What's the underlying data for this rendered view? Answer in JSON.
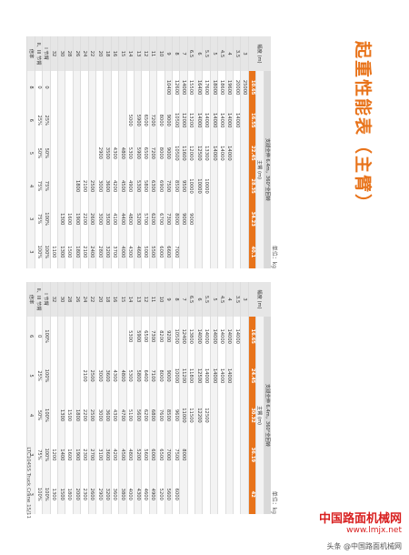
{
  "header": {
    "title": "起重性能表（主臂）"
  },
  "tables": [
    {
      "unit": "单位：kg",
      "radius_label": "幅度 (m)",
      "condition": "支腿全伸 6.4m，360°全回转",
      "boom_label": "主臂 (m)",
      "boom_lengths": [
        10.65,
        16.55,
        22.45,
        28.35,
        34.23,
        40.1
      ],
      "rows": [
        {
          "radius": 3,
          "values": [
            25000,
            null,
            null,
            null,
            null,
            null
          ]
        },
        {
          "radius": 3.5,
          "values": [
            20000,
            14000,
            null,
            null,
            null,
            null
          ]
        },
        {
          "radius": 4,
          "values": [
            19600,
            14000,
            14000,
            null,
            null,
            null
          ]
        },
        {
          "radius": 4.5,
          "values": [
            18600,
            14000,
            14000,
            null,
            null,
            null
          ]
        },
        {
          "radius": 5,
          "values": [
            18000,
            14000,
            14000,
            null,
            null,
            null
          ]
        },
        {
          "radius": 5.5,
          "values": [
            17600,
            14000,
            13300,
            10000,
            null,
            null
          ]
        },
        {
          "radius": 6,
          "values": [
            16400,
            14000,
            12500,
            10000,
            null,
            null
          ]
        },
        {
          "radius": 6.5,
          "values": [
            15500,
            13200,
            12000,
            10000,
            9000,
            null
          ]
        },
        {
          "radius": 7,
          "values": [
            14000,
            12000,
            11600,
            9500,
            9000,
            null
          ]
        },
        {
          "radius": 8,
          "values": [
            12600,
            10500,
            10500,
            8500,
            8000,
            7000
          ]
        },
        {
          "radius": 9,
          "values": [
            10400,
            9000,
            9000,
            7500,
            7300,
            6600
          ]
        },
        {
          "radius": 10,
          "values": [
            null,
            8000,
            8000,
            6900,
            6700,
            6000
          ]
        },
        {
          "radius": 11,
          "values": [
            null,
            7200,
            7200,
            6300,
            6200,
            5500
          ]
        },
        {
          "radius": 12,
          "values": [
            null,
            6500,
            6500,
            5800,
            5700,
            5000
          ]
        },
        {
          "radius": 13,
          "values": [
            null,
            5900,
            5900,
            5300,
            5200,
            4600
          ]
        },
        {
          "radius": 14,
          "values": [
            null,
            5000,
            5300,
            4900,
            4800,
            4300
          ]
        },
        {
          "radius": 15,
          "values": [
            null,
            null,
            4800,
            4500,
            4400,
            4000
          ]
        },
        {
          "radius": 16,
          "values": [
            null,
            null,
            4300,
            4200,
            4100,
            3700
          ]
        },
        {
          "radius": 18,
          "values": [
            null,
            null,
            3500,
            3600,
            3500,
            3200
          ]
        },
        {
          "radius": 20,
          "values": [
            null,
            null,
            2900,
            3000,
            3000,
            2800
          ]
        },
        {
          "radius": 22,
          "values": [
            null,
            null,
            null,
            2500,
            2600,
            2400
          ]
        },
        {
          "radius": 24,
          "values": [
            null,
            null,
            null,
            2100,
            2200,
            2100
          ]
        },
        {
          "radius": 26,
          "values": [
            null,
            null,
            null,
            1800,
            1900,
            1800
          ]
        },
        {
          "radius": 28,
          "values": [
            null,
            null,
            null,
            null,
            1600,
            1500
          ]
        },
        {
          "radius": 30,
          "values": [
            null,
            null,
            null,
            null,
            1300,
            1300
          ]
        },
        {
          "radius": 32,
          "values": [
            null,
            null,
            null,
            null,
            null,
            1100
          ]
        }
      ],
      "footer_rows": [
        {
          "label": "I 节臂",
          "values": [
            "0",
            "25%",
            "50%",
            "75%",
            "100%",
            "100%"
          ]
        },
        {
          "label": "II、III 节臂",
          "values": [
            "0",
            "25%",
            "50%",
            "75%",
            "75%",
            "100%"
          ]
        },
        {
          "label": "倍率",
          "values": [
            8,
            6,
            5,
            4,
            3,
            3
          ]
        }
      ]
    },
    {
      "unit": "单位：kg",
      "radius_label": "幅度 (m)",
      "condition": "支腿全伸 6.4m，360°全回转",
      "boom_label": "主臂 (m)",
      "boom_lengths": [
        16.65,
        24.45,
        30.32,
        36.19,
        42
      ],
      "rows": [
        {
          "radius": 3,
          "values": [
            null,
            null,
            null,
            null,
            null
          ]
        },
        {
          "radius": 3.5,
          "values": [
            14000,
            null,
            null,
            null,
            null
          ]
        },
        {
          "radius": 4,
          "values": [
            14000,
            14000,
            null,
            null,
            null
          ]
        },
        {
          "radius": 4.5,
          "values": [
            14000,
            14000,
            null,
            null,
            null
          ]
        },
        {
          "radius": 5,
          "values": [
            14000,
            14000,
            null,
            null,
            null
          ]
        },
        {
          "radius": 5.5,
          "values": [
            14000,
            14000,
            12500,
            null,
            null
          ]
        },
        {
          "radius": 6,
          "values": [
            14000,
            12500,
            12200,
            null,
            null
          ]
        },
        {
          "radius": 6.5,
          "values": [
            13800,
            11800,
            11500,
            null,
            null
          ]
        },
        {
          "radius": 7,
          "values": [
            12400,
            11200,
            11000,
            8000,
            null
          ]
        },
        {
          "radius": 8,
          "values": [
            10500,
            10000,
            9600,
            7500,
            6000
          ]
        },
        {
          "radius": 9,
          "values": [
            9200,
            9000,
            8500,
            7000,
            5600
          ]
        },
        {
          "radius": 10,
          "values": [
            8200,
            8000,
            7600,
            6500,
            5200
          ]
        },
        {
          "radius": 11,
          "values": [
            7300,
            7100,
            6800,
            6000,
            4900
          ]
        },
        {
          "radius": 12,
          "values": [
            6500,
            6400,
            6200,
            5600,
            4600
          ]
        },
        {
          "radius": 13,
          "values": [
            5900,
            5800,
            5600,
            5200,
            4300
          ]
        },
        {
          "radius": 14,
          "values": [
            5300,
            5300,
            5100,
            4800,
            4000
          ]
        },
        {
          "radius": 15,
          "values": [
            null,
            4800,
            4700,
            4500,
            3800
          ]
        },
        {
          "radius": 16,
          "values": [
            null,
            4300,
            4300,
            4200,
            3600
          ]
        },
        {
          "radius": 18,
          "values": [
            null,
            3600,
            3600,
            3600,
            3200
          ]
        },
        {
          "radius": 20,
          "values": [
            null,
            3000,
            3000,
            3100,
            2900
          ]
        },
        {
          "radius": 22,
          "values": [
            null,
            2500,
            2500,
            2700,
            2600
          ]
        },
        {
          "radius": 24,
          "values": [
            null,
            2100,
            2200,
            2300,
            2300
          ]
        },
        {
          "radius": 26,
          "values": [
            null,
            null,
            1800,
            1900,
            2000
          ]
        },
        {
          "radius": 28,
          "values": [
            null,
            null,
            1500,
            1600,
            1800
          ]
        },
        {
          "radius": 30,
          "values": [
            null,
            null,
            1300,
            1400,
            1500
          ]
        },
        {
          "radius": 32,
          "values": [
            null,
            null,
            null,
            1200,
            1300
          ]
        }
      ],
      "footer_rows": [
        {
          "label": "I 节臂",
          "values": [
            "100%",
            "100%",
            "100%",
            "100%",
            "100%"
          ]
        },
        {
          "label": "II、III 节臂",
          "values": [
            "0",
            "25%",
            "50%",
            "75%",
            "100%"
          ]
        },
        {
          "label": "倍率",
          "values": [
            6,
            5,
            4,
            3,
            3
          ]
        }
      ]
    }
  ],
  "footer": {
    "text": "LTC1045S Truck Crane 15/11"
  },
  "watermark": {
    "site": "中国路面机械网",
    "url": "www.lmjx.net",
    "credit": "头条 @中国路面机械网"
  }
}
